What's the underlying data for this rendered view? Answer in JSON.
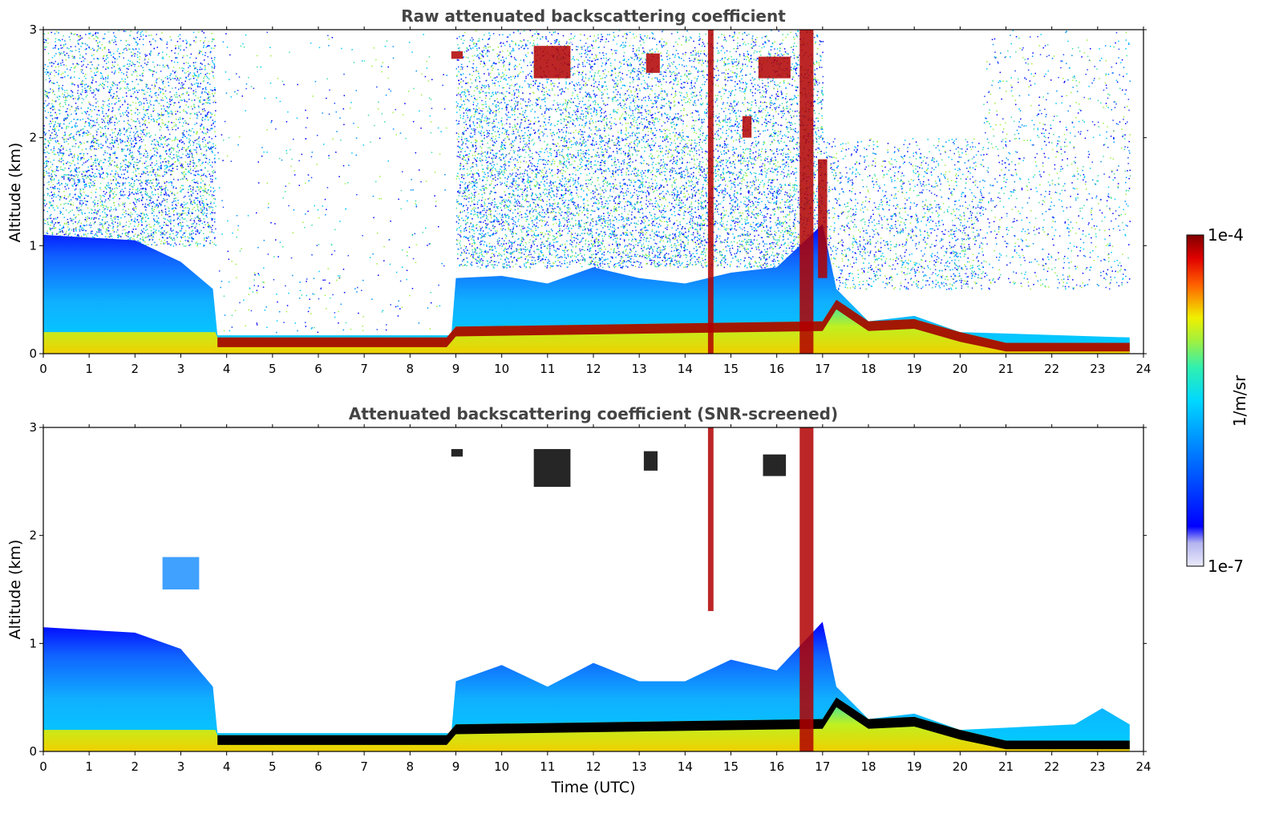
{
  "chart_data": [
    {
      "type": "heatmap",
      "title": "Raw attenuated backscattering coefficient",
      "xlabel": "",
      "ylabel": "Altitude (km)",
      "xlim": [
        0,
        24
      ],
      "ylim": [
        0,
        3
      ],
      "xticks": [
        "0",
        "1",
        "2",
        "3",
        "4",
        "5",
        "6",
        "7",
        "8",
        "9",
        "10",
        "11",
        "12",
        "13",
        "14",
        "15",
        "16",
        "17",
        "18",
        "19",
        "20",
        "21",
        "22",
        "23",
        "24"
      ],
      "yticks": [
        "0",
        "1",
        "2",
        "3"
      ],
      "screening": "none",
      "surface_layer_top_km": [
        {
          "t": 0,
          "h": 0.2
        },
        {
          "t": 3.75,
          "h": 0.2
        },
        {
          "t": 3.8,
          "h": 0.15
        },
        {
          "t": 8.8,
          "h": 0.15
        },
        {
          "t": 9.0,
          "h": 0.25
        },
        {
          "t": 17.0,
          "h": 0.3
        },
        {
          "t": 17.3,
          "h": 0.5
        },
        {
          "t": 18.0,
          "h": 0.3
        },
        {
          "t": 19.0,
          "h": 0.32
        },
        {
          "t": 20.0,
          "h": 0.2
        },
        {
          "t": 21.0,
          "h": 0.1
        },
        {
          "t": 23.7,
          "h": 0.1
        }
      ],
      "boundary_layer_top_km": [
        {
          "t": 0,
          "h": 1.1
        },
        {
          "t": 2.0,
          "h": 1.05
        },
        {
          "t": 3.0,
          "h": 0.85
        },
        {
          "t": 3.7,
          "h": 0.6
        },
        {
          "t": 3.8,
          "h": 0.17
        },
        {
          "t": 8.9,
          "h": 0.17
        },
        {
          "t": 9.0,
          "h": 0.7
        },
        {
          "t": 10.0,
          "h": 0.72
        },
        {
          "t": 11.0,
          "h": 0.65
        },
        {
          "t": 12.0,
          "h": 0.8
        },
        {
          "t": 13.0,
          "h": 0.7
        },
        {
          "t": 14.0,
          "h": 0.65
        },
        {
          "t": 15.0,
          "h": 0.75
        },
        {
          "t": 16.0,
          "h": 0.8
        },
        {
          "t": 17.0,
          "h": 1.2
        },
        {
          "t": 17.3,
          "h": 0.6
        },
        {
          "t": 18.0,
          "h": 0.3
        },
        {
          "t": 19.0,
          "h": 0.35
        },
        {
          "t": 20.0,
          "h": 0.2
        },
        {
          "t": 23.7,
          "h": 0.15
        }
      ],
      "noise_regions": [
        {
          "t0": 0,
          "t1": 3.75,
          "h0": 1.0,
          "h1": 3.0,
          "density": "high"
        },
        {
          "t0": 9.0,
          "t1": 17.0,
          "h0": 0.8,
          "h1": 3.0,
          "density": "high"
        },
        {
          "t0": 17.0,
          "t1": 20.5,
          "h0": 0.6,
          "h1": 2.0,
          "density": "medium"
        },
        {
          "t0": 20.5,
          "t1": 23.7,
          "h0": 0.6,
          "h1": 3.0,
          "density": "low"
        },
        {
          "t0": 3.8,
          "t1": 8.8,
          "h0": 0.2,
          "h1": 3.0,
          "density": "very low"
        }
      ],
      "strong_returns": [
        {
          "t0": 10.7,
          "t1": 11.5,
          "h0": 2.55,
          "h1": 2.85,
          "level": "high"
        },
        {
          "t0": 8.9,
          "t1": 9.15,
          "h0": 2.73,
          "h1": 2.8,
          "level": "high"
        },
        {
          "t0": 13.15,
          "t1": 13.45,
          "h0": 2.6,
          "h1": 2.78,
          "level": "high"
        },
        {
          "t0": 15.6,
          "t1": 16.3,
          "h0": 2.55,
          "h1": 2.75,
          "level": "high"
        },
        {
          "t0": 15.25,
          "t1": 15.45,
          "h0": 2.0,
          "h1": 2.2,
          "level": "high"
        },
        {
          "t0": 14.5,
          "t1": 14.62,
          "h0": 0.0,
          "h1": 3.0,
          "level": "high"
        },
        {
          "t0": 16.5,
          "t1": 16.8,
          "h0": 0.0,
          "h1": 3.0,
          "level": "high"
        },
        {
          "t0": 16.9,
          "t1": 17.1,
          "h0": 0.7,
          "h1": 1.8,
          "level": "high"
        }
      ]
    },
    {
      "type": "heatmap",
      "title": "Attenuated backscattering coefficient (SNR-screened)",
      "xlabel": "Time (UTC)",
      "ylabel": "Altitude (km)",
      "xlim": [
        0,
        24
      ],
      "ylim": [
        0,
        3
      ],
      "xticks": [
        "0",
        "1",
        "2",
        "3",
        "4",
        "5",
        "6",
        "7",
        "8",
        "9",
        "10",
        "11",
        "12",
        "13",
        "14",
        "15",
        "16",
        "17",
        "18",
        "19",
        "20",
        "21",
        "22",
        "23",
        "24"
      ],
      "yticks": [
        "0",
        "1",
        "2",
        "3"
      ],
      "screening": "SNR",
      "surface_layer_top_km": [
        {
          "t": 0,
          "h": 0.2
        },
        {
          "t": 3.75,
          "h": 0.2
        },
        {
          "t": 3.8,
          "h": 0.15
        },
        {
          "t": 8.8,
          "h": 0.15
        },
        {
          "t": 9.0,
          "h": 0.25
        },
        {
          "t": 17.0,
          "h": 0.3
        },
        {
          "t": 17.3,
          "h": 0.5
        },
        {
          "t": 18.0,
          "h": 0.3
        },
        {
          "t": 19.0,
          "h": 0.32
        },
        {
          "t": 20.0,
          "h": 0.2
        },
        {
          "t": 21.0,
          "h": 0.1
        },
        {
          "t": 23.7,
          "h": 0.1
        }
      ],
      "boundary_layer_top_km": [
        {
          "t": 0,
          "h": 1.15
        },
        {
          "t": 2.0,
          "h": 1.1
        },
        {
          "t": 3.0,
          "h": 0.95
        },
        {
          "t": 3.7,
          "h": 0.6
        },
        {
          "t": 3.8,
          "h": 0.17
        },
        {
          "t": 8.9,
          "h": 0.17
        },
        {
          "t": 9.0,
          "h": 0.65
        },
        {
          "t": 10.0,
          "h": 0.8
        },
        {
          "t": 11.0,
          "h": 0.6
        },
        {
          "t": 12.0,
          "h": 0.82
        },
        {
          "t": 13.0,
          "h": 0.65
        },
        {
          "t": 14.0,
          "h": 0.65
        },
        {
          "t": 15.0,
          "h": 0.85
        },
        {
          "t": 16.0,
          "h": 0.75
        },
        {
          "t": 17.0,
          "h": 1.2
        },
        {
          "t": 17.3,
          "h": 0.6
        },
        {
          "t": 18.0,
          "h": 0.3
        },
        {
          "t": 19.0,
          "h": 0.35
        },
        {
          "t": 20.0,
          "h": 0.2
        },
        {
          "t": 22.5,
          "h": 0.25
        },
        {
          "t": 23.1,
          "h": 0.4
        },
        {
          "t": 23.7,
          "h": 0.25
        }
      ],
      "strong_returns": [
        {
          "t0": 10.7,
          "t1": 11.5,
          "h0": 2.45,
          "h1": 2.8,
          "level": "saturated"
        },
        {
          "t0": 8.9,
          "t1": 9.15,
          "h0": 2.73,
          "h1": 2.8,
          "level": "saturated"
        },
        {
          "t0": 13.1,
          "t1": 13.4,
          "h0": 2.6,
          "h1": 2.78,
          "level": "saturated"
        },
        {
          "t0": 15.7,
          "t1": 16.2,
          "h0": 2.55,
          "h1": 2.75,
          "level": "saturated"
        },
        {
          "t0": 14.5,
          "t1": 14.62,
          "h0": 1.3,
          "h1": 3.0,
          "level": "high"
        },
        {
          "t0": 16.5,
          "t1": 16.8,
          "h0": 0.0,
          "h1": 3.0,
          "level": "high"
        },
        {
          "t0": 2.6,
          "t1": 3.4,
          "h0": 1.5,
          "h1": 1.8,
          "level": "low"
        }
      ]
    }
  ],
  "colorbar": {
    "label": "1/m/sr",
    "min_label": "1e-7",
    "max_label": "1e-4",
    "min": 1e-07,
    "max": 0.0001,
    "scale": "log",
    "colors": [
      "#ebebfa",
      "#c8c8f5",
      "#9b9bf0",
      "#0000ff",
      "#0080ff",
      "#00c8ff",
      "#00e0d0",
      "#40f080",
      "#a0f040",
      "#f0f000",
      "#ffb000",
      "#ff5000",
      "#e00000",
      "#800000"
    ]
  }
}
